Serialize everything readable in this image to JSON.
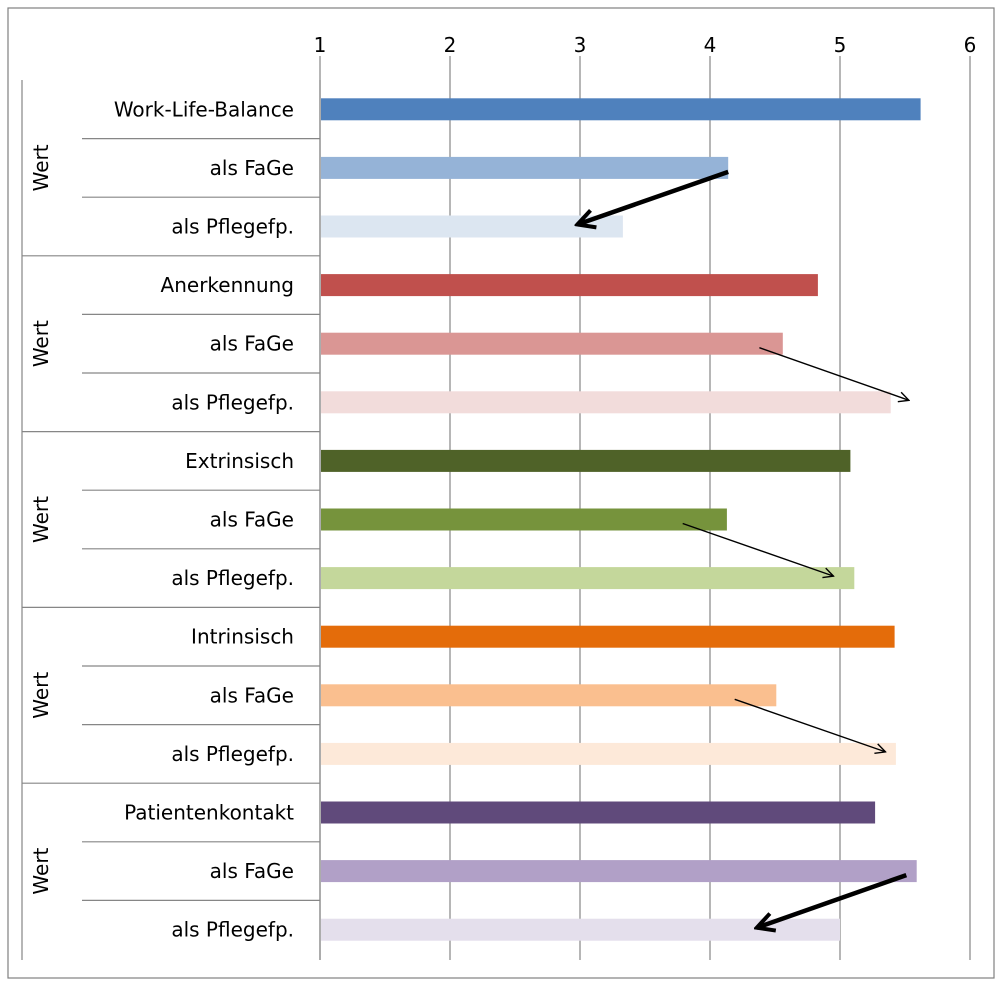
{
  "chart_data": {
    "type": "bar",
    "orientation": "horizontal",
    "xlim": [
      1,
      6
    ],
    "x_ticks": [
      "1",
      "2",
      "3",
      "4",
      "5",
      "6"
    ],
    "grid": true,
    "legend": "none",
    "groups": [
      {
        "group_label": "Wert",
        "categories": [
          "Work-Life-Balance",
          "als FaGe",
          "als Pflegefp."
        ],
        "values": [
          5.62,
          4.14,
          3.33
        ],
        "colors": [
          "#4f81bd",
          "#95b3d7",
          "#dce6f1"
        ],
        "arrow": {
          "from": 4.14,
          "to": 2.98,
          "bold": true
        }
      },
      {
        "group_label": "Wert",
        "categories": [
          "Anerkennung",
          "als FaGe",
          "als Pflegefp."
        ],
        "values": [
          4.83,
          4.56,
          5.39
        ],
        "colors": [
          "#c0504d",
          "#da9694",
          "#f2dcdb"
        ],
        "arrow": {
          "from": 4.38,
          "to": 5.53,
          "bold": false
        }
      },
      {
        "group_label": "Wert",
        "categories": [
          "Extrinsisch",
          "als FaGe",
          "als Pflegefp."
        ],
        "values": [
          5.08,
          4.13,
          5.11
        ],
        "colors": [
          "#4f6228",
          "#76933c",
          "#c4d79b"
        ],
        "arrow": {
          "from": 3.79,
          "to": 4.95,
          "bold": false
        }
      },
      {
        "group_label": "Wert",
        "categories": [
          "Intrinsisch",
          "als FaGe",
          "als Pflegefp."
        ],
        "values": [
          5.42,
          4.51,
          5.43
        ],
        "colors": [
          "#e46c0a",
          "#fabf8f",
          "#fde9d9"
        ],
        "arrow": {
          "from": 4.19,
          "to": 5.35,
          "bold": false
        }
      },
      {
        "group_label": "Wert",
        "categories": [
          "Patientenkontakt",
          "als FaGe",
          "als Pflegefp."
        ],
        "values": [
          5.27,
          5.59,
          5.0
        ],
        "colors": [
          "#604a7b",
          "#b1a0c7",
          "#e4dfec"
        ],
        "arrow": {
          "from": 5.51,
          "to": 4.36,
          "bold": true
        }
      }
    ]
  }
}
